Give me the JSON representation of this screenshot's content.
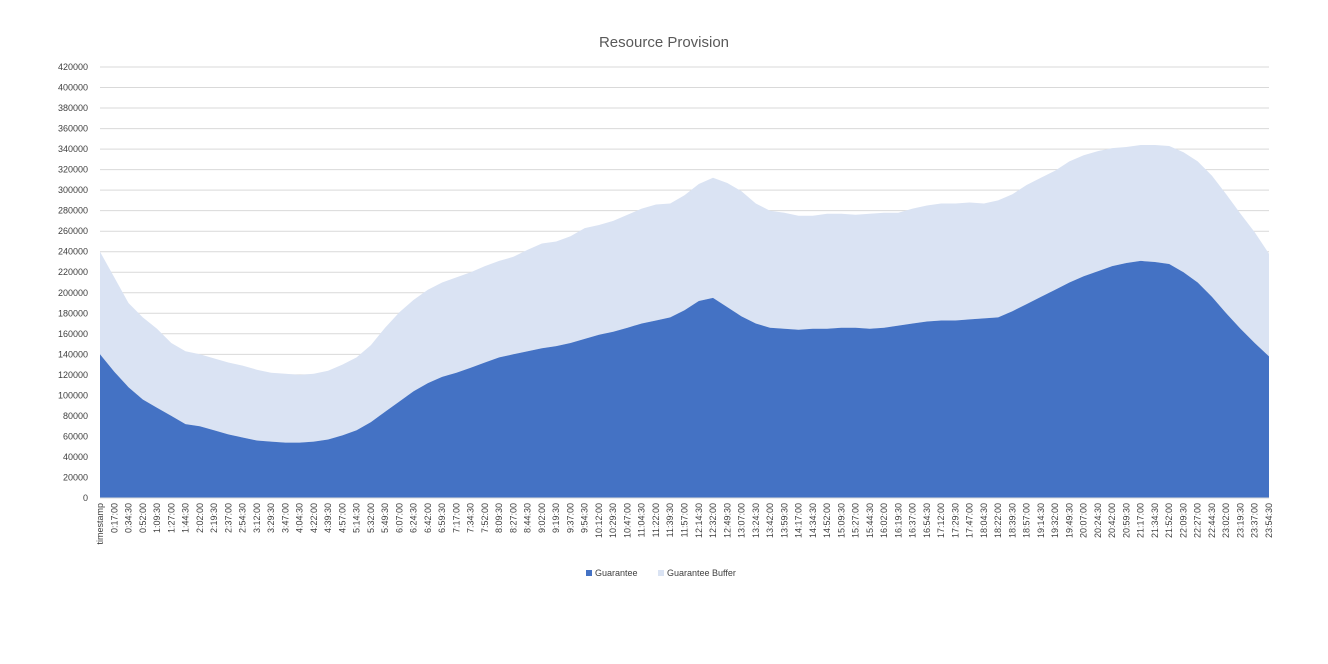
{
  "chart_data": {
    "type": "area",
    "stacked": true,
    "title": "Resource Provision",
    "xlabel": "",
    "ylabel": "",
    "ylim": [
      0,
      420000
    ],
    "y_ticks": [
      0,
      20000,
      40000,
      60000,
      80000,
      100000,
      120000,
      140000,
      160000,
      180000,
      200000,
      220000,
      240000,
      260000,
      280000,
      300000,
      320000,
      340000,
      360000,
      380000,
      400000,
      420000
    ],
    "categories": [
      "timestamp",
      "0:17:00",
      "0:34:30",
      "0:52:00",
      "1:09:30",
      "1:27:00",
      "1:44:30",
      "2:02:00",
      "2:19:30",
      "2:37:00",
      "2:54:30",
      "3:12:00",
      "3:29:30",
      "3:47:00",
      "4:04:30",
      "4:22:00",
      "4:39:30",
      "4:57:00",
      "5:14:30",
      "5:32:00",
      "5:49:30",
      "6:07:00",
      "6:24:30",
      "6:42:00",
      "6:59:30",
      "7:17:00",
      "7:34:30",
      "7:52:00",
      "8:09:30",
      "8:27:00",
      "8:44:30",
      "9:02:00",
      "9:19:30",
      "9:37:00",
      "9:54:30",
      "10:12:00",
      "10:29:30",
      "10:47:00",
      "11:04:30",
      "11:22:00",
      "11:39:30",
      "11:57:00",
      "12:14:30",
      "12:32:00",
      "12:49:30",
      "13:07:00",
      "13:24:30",
      "13:42:00",
      "13:59:30",
      "14:17:00",
      "14:34:30",
      "14:52:00",
      "15:09:30",
      "15:27:00",
      "15:44:30",
      "16:02:00",
      "16:19:30",
      "16:37:00",
      "16:54:30",
      "17:12:00",
      "17:29:30",
      "17:47:00",
      "18:04:30",
      "18:22:00",
      "18:39:30",
      "18:57:00",
      "19:14:30",
      "19:32:00",
      "19:49:30",
      "20:07:00",
      "20:24:30",
      "20:42:00",
      "20:59:30",
      "21:17:00",
      "21:34:30",
      "21:52:00",
      "22:09:30",
      "22:27:00",
      "22:44:30",
      "23:02:00",
      "23:19:30",
      "23:37:00",
      "23:54:30"
    ],
    "series": [
      {
        "name": "Guarantee",
        "color": "#4472C4",
        "values": [
          140000,
          123000,
          108000,
          96000,
          88000,
          80000,
          72000,
          70000,
          66000,
          62000,
          59000,
          56000,
          55000,
          54000,
          54000,
          55000,
          57000,
          61000,
          66000,
          74000,
          84000,
          94000,
          104000,
          112000,
          118000,
          122000,
          127000,
          132000,
          137000,
          140000,
          143000,
          146000,
          148000,
          151000,
          155000,
          159000,
          162000,
          166000,
          170000,
          173000,
          176000,
          183000,
          192000,
          195000,
          186000,
          177000,
          170000,
          166000,
          165000,
          164000,
          165000,
          165000,
          166000,
          166000,
          165000,
          166000,
          168000,
          170000,
          172000,
          173000,
          173000,
          174000,
          175000,
          176000,
          182000,
          189000,
          196000,
          203000,
          210000,
          216000,
          221000,
          226000,
          229000,
          231000,
          230000,
          228000,
          220000,
          210000,
          196000,
          180000,
          165000,
          151000,
          138000
        ]
      },
      {
        "name": "Guarantee Buffer",
        "color": "#DAE3F3",
        "values": [
          100000,
          92000,
          82000,
          80000,
          77000,
          71000,
          71000,
          70000,
          70000,
          70000,
          70000,
          69000,
          67000,
          67000,
          66000,
          66000,
          67000,
          69000,
          71000,
          75000,
          82000,
          87000,
          89000,
          91000,
          92000,
          93000,
          93000,
          94000,
          94000,
          95000,
          99000,
          102000,
          102000,
          104000,
          108000,
          107000,
          108000,
          110000,
          112000,
          113000,
          111000,
          112000,
          114000,
          117000,
          121000,
          122000,
          117000,
          114000,
          113000,
          111000,
          110000,
          112000,
          111000,
          110000,
          112000,
          112000,
          110000,
          112000,
          113000,
          114000,
          114000,
          114000,
          112000,
          114000,
          114000,
          116000,
          116000,
          116000,
          118000,
          118000,
          117000,
          115000,
          113000,
          113000,
          114000,
          115000,
          117000,
          118000,
          118000,
          116000,
          112000,
          108000,
          100000
        ]
      }
    ],
    "grid": {
      "horizontal": true,
      "vertical": false
    },
    "legend": {
      "position": "bottom",
      "entries": [
        "Guarantee",
        "Guarantee Buffer"
      ]
    }
  }
}
